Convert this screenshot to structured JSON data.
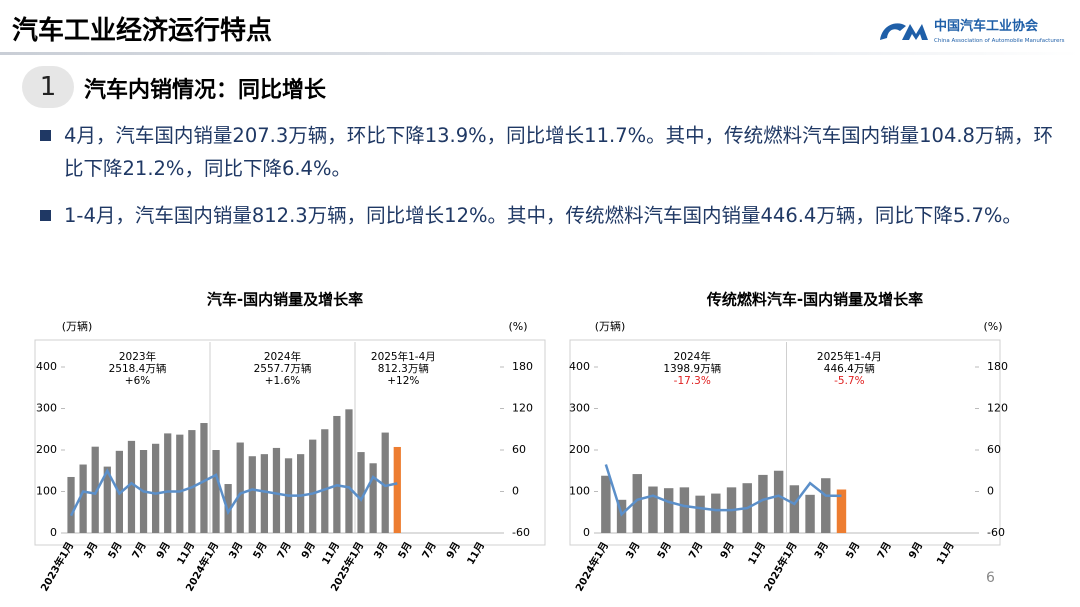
{
  "header": {
    "title": "汽车工业经济运行特点",
    "logo_text": "中国汽车工业协会",
    "logo_subtext": "China Association of Automobile Manufacturers"
  },
  "section": {
    "number": "1",
    "title": "汽车内销情况：同比增长"
  },
  "bullets": [
    "4月，汽车国内销量207.3万辆，环比下降13.9%，同比增长11.7%。其中，传统燃料汽车国内销量104.8万辆，环比下降21.2%，同比下降6.4%。",
    "1-4月，汽车国内销量812.3万辆，同比增长12%。其中，传统燃料汽车国内销量446.4万辆，同比下降5.7%。"
  ],
  "page_number": "6",
  "chart_data": [
    {
      "type": "bar_line",
      "title": "汽车-国内销量及增长率",
      "y_label": "(万辆)",
      "y2_label": "(%)",
      "categories": [
        "2023年1月",
        null,
        "3月",
        null,
        "5月",
        null,
        "7月",
        null,
        "9月",
        null,
        "11月",
        null,
        "2024年1月",
        null,
        "3月",
        null,
        "5月",
        null,
        "7月",
        null,
        "9月",
        null,
        "11月",
        null,
        "2025年1月",
        null,
        "3月",
        null,
        "5月",
        null,
        "7月",
        null,
        "9月",
        null,
        "11月",
        null
      ],
      "series": [
        {
          "type": "bar",
          "color": "#7f7f7f",
          "values": [
            135,
            165,
            208,
            160,
            198,
            222,
            200,
            215,
            240,
            237,
            248,
            265,
            200,
            118,
            218,
            185,
            190,
            205,
            180,
            190,
            225,
            250,
            282,
            298,
            195,
            168,
            242,
            null,
            null,
            null,
            null,
            null,
            null,
            null,
            null,
            null
          ]
        },
        {
          "type": "bar",
          "color": "#ed7d31",
          "values": [
            null,
            null,
            null,
            null,
            null,
            null,
            null,
            null,
            null,
            null,
            null,
            null,
            null,
            null,
            null,
            null,
            null,
            null,
            null,
            null,
            null,
            null,
            null,
            null,
            null,
            null,
            null,
            207.3,
            null,
            null,
            null,
            null,
            null,
            null,
            null,
            null
          ]
        },
        {
          "type": "line",
          "axis": "y2",
          "color": "#5b8fc9",
          "values": [
            -35,
            0,
            -3,
            30,
            -3,
            12,
            0,
            -3,
            0,
            0,
            6,
            15,
            24,
            -30,
            -3,
            3,
            0,
            -3,
            -6,
            -6,
            -3,
            3,
            9,
            6,
            -12,
            21,
            8,
            11.7,
            null,
            null,
            null,
            null,
            null,
            null,
            null,
            null
          ]
        }
      ],
      "ylim": [
        0,
        400
      ],
      "yticks": [
        0,
        100,
        200,
        300,
        400
      ],
      "y2lim": [
        -60,
        180
      ],
      "y2ticks": [
        -60,
        0,
        60,
        120,
        180
      ],
      "annotations": [
        {
          "period": "2023年",
          "total": "2518.4万辆",
          "growth": "+6%",
          "growth_color": "#000000"
        },
        {
          "period": "2024年",
          "total": "2557.7万辆",
          "growth": "+1.6%",
          "growth_color": "#000000"
        },
        {
          "period": "2025年1-4月",
          "total": "812.3万辆",
          "growth": "+12%",
          "growth_color": "#000000"
        }
      ]
    },
    {
      "type": "bar_line",
      "title": "传统燃料汽车-国内销量及增长率",
      "y_label": "(万辆)",
      "y2_label": "(%)",
      "categories": [
        "2024年1月",
        null,
        "3月",
        null,
        "5月",
        null,
        "7月",
        null,
        "9月",
        null,
        "11月",
        null,
        "2025年1月",
        null,
        "3月",
        null,
        "5月",
        null,
        "7月",
        null,
        "9月",
        null,
        "11月",
        null
      ],
      "series": [
        {
          "type": "bar",
          "color": "#7f7f7f",
          "values": [
            138,
            80,
            142,
            112,
            108,
            110,
            90,
            95,
            110,
            120,
            140,
            150,
            115,
            92,
            132,
            null,
            null,
            null,
            null,
            null,
            null,
            null,
            null,
            null
          ]
        },
        {
          "type": "bar",
          "color": "#ed7d31",
          "values": [
            null,
            null,
            null,
            null,
            null,
            null,
            null,
            null,
            null,
            null,
            null,
            null,
            null,
            null,
            null,
            104.8,
            null,
            null,
            null,
            null,
            null,
            null,
            null,
            null
          ]
        },
        {
          "type": "line",
          "axis": "y2",
          "color": "#5b8fc9",
          "values": [
            39,
            -33,
            -12,
            -6,
            -15,
            -21,
            -24,
            -27,
            -27,
            -24,
            -12,
            -6,
            -18,
            12,
            -6,
            -6.4,
            null,
            null,
            null,
            null,
            null,
            null,
            null,
            null
          ]
        }
      ],
      "ylim": [
        0,
        400
      ],
      "yticks": [
        0,
        100,
        200,
        300,
        400
      ],
      "y2lim": [
        -60,
        180
      ],
      "y2ticks": [
        -60,
        0,
        60,
        120,
        180
      ],
      "annotations": [
        {
          "period": "2024年",
          "total": "1398.9万辆",
          "growth": "-17.3%",
          "growth_color": "#e02020"
        },
        {
          "period": "2025年1-4月",
          "total": "446.4万辆",
          "growth": "-5.7%",
          "growth_color": "#e02020"
        }
      ]
    }
  ]
}
